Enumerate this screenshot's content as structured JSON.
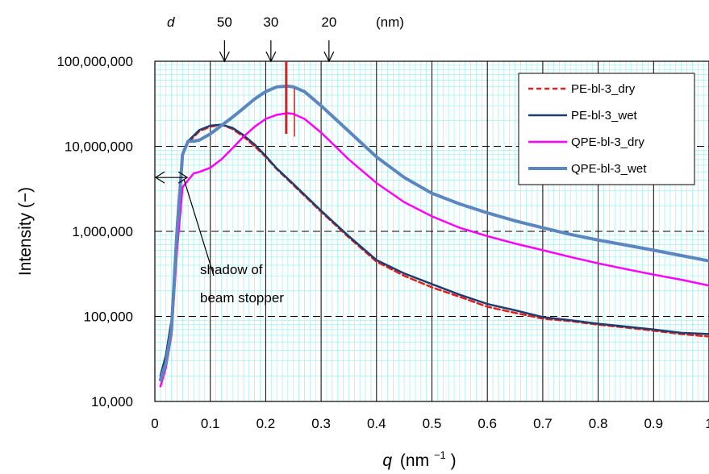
{
  "chart_data": {
    "type": "line",
    "xlabel_var": "q",
    "xlabel_unit": "(nm",
    "xlabel_exp": "−1",
    "xlabel_close": ")",
    "ylabel": "Intensity (−)",
    "xlim": [
      0,
      1.0
    ],
    "ylim": [
      10000,
      100000000
    ],
    "yscale": "log",
    "x_ticks": [
      "0",
      "0.1",
      "0.2",
      "0.3",
      "0.4",
      "0.5",
      "0.6",
      "0.7",
      "0.8",
      "0.9",
      "1"
    ],
    "y_ticks": [
      "10,000",
      "100,000",
      "1,000,000",
      "10,000,000",
      "100,000,000"
    ],
    "grid": "on",
    "legend_position": "top-right",
    "top_axis": {
      "var": "d",
      "unit": "(nm)",
      "markers": [
        {
          "label": "50",
          "q": 0.1257
        },
        {
          "label": "30",
          "q": 0.2094
        },
        {
          "label": "20",
          "q": 0.3142
        }
      ]
    },
    "annotations": {
      "shadow_line1": "shadow of",
      "shadow_line2": "beam stopper",
      "shadow_arrow_q": [
        0.0,
        0.06
      ],
      "shadow_arrow_y": 4300000,
      "peak_markers": [
        {
          "q": 0.237,
          "y_range": [
            14000000,
            100000000
          ],
          "color": "#e02020"
        },
        {
          "q": 0.252,
          "y_range": [
            13000000,
            48000000
          ],
          "color": "#e02020"
        }
      ]
    },
    "series": [
      {
        "name": "PE-bl-3_dry",
        "color": "#e02020",
        "dash": "dashed",
        "x": [
          0.01,
          0.02,
          0.03,
          0.04,
          0.05,
          0.06,
          0.08,
          0.1,
          0.12,
          0.14,
          0.16,
          0.18,
          0.2,
          0.22,
          0.25,
          0.3,
          0.35,
          0.4,
          0.45,
          0.5,
          0.55,
          0.6,
          0.65,
          0.7,
          0.75,
          0.8,
          0.85,
          0.9,
          0.95,
          1.0
        ],
        "y": [
          19000,
          30000,
          80000,
          1200000,
          8000000,
          11000000,
          15000000,
          17000000,
          18000000,
          16000000,
          13000000,
          10000000,
          7500000,
          5400000,
          3500000,
          1700000,
          850000,
          440000,
          300000,
          220000,
          170000,
          130000,
          110000,
          94000,
          88000,
          80000,
          74000,
          68000,
          62000,
          58000
        ]
      },
      {
        "name": "PE-bl-3_wet",
        "color": "#1f3c6e",
        "dash": "solid",
        "x": [
          0.01,
          0.02,
          0.03,
          0.04,
          0.05,
          0.06,
          0.08,
          0.1,
          0.12,
          0.14,
          0.16,
          0.18,
          0.2,
          0.22,
          0.25,
          0.3,
          0.35,
          0.4,
          0.45,
          0.5,
          0.55,
          0.6,
          0.65,
          0.7,
          0.75,
          0.8,
          0.85,
          0.9,
          0.95,
          1.0
        ],
        "y": [
          20000,
          35000,
          90000,
          1300000,
          8300000,
          11500000,
          15500000,
          17500000,
          18000000,
          16500000,
          13500000,
          10500000,
          7700000,
          5500000,
          3600000,
          1750000,
          880000,
          460000,
          320000,
          240000,
          180000,
          140000,
          118000,
          98000,
          90000,
          82000,
          76000,
          70000,
          64000,
          62000
        ]
      },
      {
        "name": "QPE-bl-3_dry",
        "color": "#ff00ff",
        "dash": "solid",
        "x": [
          0.01,
          0.02,
          0.03,
          0.04,
          0.05,
          0.06,
          0.07,
          0.08,
          0.1,
          0.12,
          0.14,
          0.16,
          0.18,
          0.2,
          0.22,
          0.24,
          0.25,
          0.27,
          0.3,
          0.35,
          0.4,
          0.45,
          0.5,
          0.55,
          0.6,
          0.65,
          0.7,
          0.75,
          0.8,
          0.85,
          0.9,
          0.95,
          1.0
        ],
        "y": [
          15000,
          25000,
          60000,
          600000,
          3300000,
          4000000,
          4800000,
          5000000,
          5600000,
          7000000,
          9500000,
          13000000,
          17000000,
          21000000,
          23500000,
          24500000,
          24000000,
          21000000,
          14500000,
          7000000,
          3700000,
          2200000,
          1500000,
          1100000,
          880000,
          720000,
          600000,
          500000,
          420000,
          360000,
          310000,
          270000,
          230000
        ]
      },
      {
        "name": "QPE-bl-3_wet",
        "color": "#5b86c0",
        "dash": "solid",
        "x": [
          0.01,
          0.02,
          0.03,
          0.04,
          0.05,
          0.06,
          0.07,
          0.08,
          0.1,
          0.12,
          0.14,
          0.16,
          0.18,
          0.2,
          0.22,
          0.24,
          0.25,
          0.27,
          0.3,
          0.35,
          0.4,
          0.45,
          0.5,
          0.55,
          0.6,
          0.65,
          0.7,
          0.75,
          0.8,
          0.85,
          0.9,
          0.95,
          1.0
        ],
        "y": [
          18000,
          28000,
          70000,
          1000000,
          8000000,
          11500000,
          11500000,
          11800000,
          14000000,
          17500000,
          22000000,
          28000000,
          36000000,
          44000000,
          50000000,
          51000000,
          50000000,
          44000000,
          30000000,
          15000000,
          7500000,
          4300000,
          2800000,
          2100000,
          1650000,
          1330000,
          1100000,
          920000,
          790000,
          690000,
          600000,
          520000,
          450000
        ]
      }
    ]
  }
}
